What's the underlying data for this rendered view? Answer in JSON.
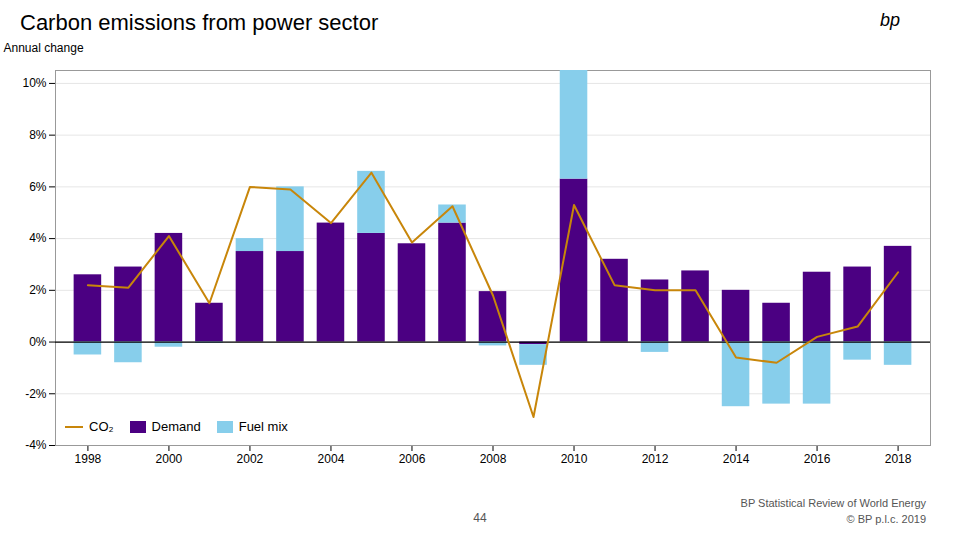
{
  "chart_data": {
    "type": "bar",
    "title": "Carbon emissions from power sector",
    "ylabel": "Annual change",
    "x": [
      1998,
      1999,
      2000,
      2001,
      2002,
      2003,
      2004,
      2005,
      2006,
      2007,
      2008,
      2009,
      2010,
      2011,
      2012,
      2013,
      2014,
      2015,
      2016,
      2017,
      2018
    ],
    "series": [
      {
        "name": "CO₂",
        "type": "line",
        "color": "#c8860a",
        "values": [
          2.2,
          2.1,
          4.1,
          1.5,
          6.0,
          5.9,
          4.6,
          6.55,
          3.85,
          5.25,
          1.8,
          -2.9,
          5.3,
          2.2,
          2.0,
          2.0,
          -0.6,
          -0.8,
          0.2,
          0.6,
          2.7
        ]
      },
      {
        "name": "Demand",
        "type": "bar",
        "color": "#4b0082",
        "values": [
          2.6,
          2.9,
          4.2,
          1.5,
          3.5,
          3.5,
          4.6,
          4.2,
          3.8,
          4.6,
          1.95,
          -0.1,
          6.3,
          3.2,
          2.4,
          2.75,
          2.0,
          1.5,
          2.7,
          2.9,
          3.7
        ]
      },
      {
        "name": "Fuel mix",
        "type": "bar",
        "color": "#87ceeb",
        "values": [
          -0.5,
          -0.8,
          -0.2,
          -0.05,
          0.5,
          2.5,
          0.0,
          2.4,
          0.0,
          0.7,
          -0.15,
          -0.8,
          4.2,
          0.0,
          -0.4,
          0.0,
          -2.5,
          -2.4,
          -2.4,
          -0.7,
          -0.9
        ]
      }
    ],
    "stacked": true,
    "xlim": [
      1997.2,
      2018.8
    ],
    "xticks": [
      1998,
      2000,
      2002,
      2004,
      2006,
      2008,
      2010,
      2012,
      2014,
      2016,
      2018
    ],
    "ylim": [
      -4,
      10.5
    ],
    "yticks": [
      {
        "value": -4,
        "label": "-4%"
      },
      {
        "value": -2,
        "label": "-2%"
      },
      {
        "value": 0,
        "label": "0%"
      },
      {
        "value": 2,
        "label": "2%"
      },
      {
        "value": 4,
        "label": "4%"
      },
      {
        "value": 6,
        "label": "6%"
      },
      {
        "value": 8,
        "label": "8%"
      },
      {
        "value": 10,
        "label": "10%"
      }
    ],
    "grid": true,
    "legend": "lower left",
    "annotations": [
      "44",
      "BP Statistical Review of World Energy",
      "© BP p.l.c. 2019",
      "bp"
    ]
  }
}
